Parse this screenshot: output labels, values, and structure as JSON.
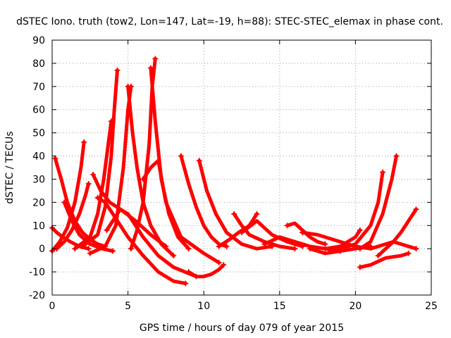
{
  "chart_data": {
    "type": "scatter",
    "title": "dSTEC Iono. truth (tow2, Lon=147, Lat=-19, h=88): STEC-STEC_elemax in phase cont.",
    "xlabel": "GPS time / hours of day 079 of year 2015",
    "ylabel": "dSTEC  / TECUs",
    "xlim": [
      0,
      25
    ],
    "ylim": [
      -20,
      90
    ],
    "grid": true,
    "marker": "plus",
    "series_color": "#ff0000",
    "x_ticks": [
      0,
      5,
      10,
      15,
      20,
      25
    ],
    "y_ticks": [
      -20,
      -10,
      0,
      10,
      20,
      30,
      40,
      50,
      60,
      70,
      80,
      90
    ],
    "x_tick_labels": [
      "0",
      "5",
      "10",
      "15",
      "20",
      "25"
    ],
    "y_tick_labels": [
      "-20",
      "-10",
      "0",
      "10",
      "20",
      "30",
      "40",
      "50",
      "60",
      "70",
      "80",
      "90"
    ],
    "series": [
      {
        "x": [
          0.0,
          0.3,
          0.7,
          1.2,
          1.8,
          2.4
        ],
        "y": [
          9,
          7,
          5,
          3,
          1,
          0
        ]
      },
      {
        "x": [
          0.2,
          0.6,
          1.0,
          1.5,
          2.0,
          2.5,
          3.0,
          3.5
        ],
        "y": [
          39,
          30,
          20,
          12,
          7,
          4,
          2,
          1
        ]
      },
      {
        "x": [
          0.0,
          0.5,
          1.0,
          1.5,
          1.9,
          2.1
        ],
        "y": [
          -1,
          3,
          9,
          20,
          35,
          46
        ]
      },
      {
        "x": [
          0.3,
          0.8,
          1.3,
          1.8,
          2.2,
          2.4
        ],
        "y": [
          0,
          3,
          8,
          15,
          23,
          28
        ]
      },
      {
        "x": [
          0.8,
          1.3,
          1.8,
          2.5,
          3.3,
          4.0
        ],
        "y": [
          20,
          12,
          6,
          2,
          0,
          -1
        ]
      },
      {
        "x": [
          2.7,
          3.2,
          3.8,
          4.5,
          5.5,
          6.5,
          7.5
        ],
        "y": [
          32,
          25,
          20,
          17,
          12,
          6,
          1
        ]
      },
      {
        "x": [
          1.5,
          2.5,
          3.0,
          3.4,
          3.7,
          3.9
        ],
        "y": [
          0,
          5,
          15,
          30,
          45,
          55
        ]
      },
      {
        "x": [
          2.0,
          3.0,
          3.5,
          3.9,
          4.1,
          4.3
        ],
        "y": [
          1,
          6,
          18,
          40,
          60,
          77
        ]
      },
      {
        "x": [
          3.0,
          3.5,
          4.0,
          5.0,
          6.0,
          7.0,
          8.0,
          8.8
        ],
        "y": [
          22,
          20,
          15,
          5,
          -3,
          -10,
          -14,
          -15
        ]
      },
      {
        "x": [
          3.6,
          4.0,
          4.5,
          5.0,
          6.0,
          7.0,
          8.0,
          9.5
        ],
        "y": [
          8,
          12,
          17,
          15,
          5,
          -3,
          -8,
          -12
        ]
      },
      {
        "x": [
          2.5,
          3.5,
          4.2,
          4.7,
          5.0,
          5.2
        ],
        "y": [
          -2,
          1,
          10,
          35,
          60,
          70
        ]
      },
      {
        "x": [
          5.0,
          5.3,
          5.6,
          6.0,
          6.5,
          7.2,
          8.0
        ],
        "y": [
          70,
          50,
          35,
          20,
          10,
          2,
          -3
        ]
      },
      {
        "x": [
          5.2,
          5.6,
          6.0,
          6.4,
          6.6,
          6.8
        ],
        "y": [
          0,
          8,
          20,
          45,
          70,
          82
        ]
      },
      {
        "x": [
          6.5,
          6.8,
          7.2,
          7.7,
          8.3,
          9.0
        ],
        "y": [
          78,
          55,
          30,
          15,
          5,
          0
        ]
      },
      {
        "x": [
          6.0,
          6.5,
          7.0,
          7.5,
          8.5,
          10.0,
          11.0
        ],
        "y": [
          30,
          35,
          38,
          20,
          5,
          -2,
          -6
        ]
      },
      {
        "x": [
          8.5,
          9.0,
          9.5,
          10.0,
          10.5,
          11.0,
          11.5
        ],
        "y": [
          40,
          28,
          18,
          10,
          5,
          2,
          1
        ]
      },
      {
        "x": [
          9.7,
          10.2,
          10.8,
          11.5,
          12.5,
          13.5,
          14.5
        ],
        "y": [
          38,
          25,
          15,
          7,
          2,
          0,
          1
        ]
      },
      {
        "x": [
          9.0,
          9.5,
          10.0,
          10.5,
          11.0,
          11.3
        ],
        "y": [
          -10,
          -12,
          -12,
          -11,
          -9,
          -7
        ]
      },
      {
        "x": [
          11.0,
          11.7,
          12.3,
          13.0,
          13.5
        ],
        "y": [
          1,
          4,
          7,
          10,
          15
        ]
      },
      {
        "x": [
          12.0,
          12.5,
          13.0,
          14.0,
          15.0,
          16.0
        ],
        "y": [
          15,
          10,
          6,
          3,
          1,
          0
        ]
      },
      {
        "x": [
          12.5,
          13.5,
          14.5,
          15.5,
          16.5
        ],
        "y": [
          7,
          12,
          6,
          3,
          1
        ]
      },
      {
        "x": [
          14.0,
          15.0,
          16.0,
          17.0,
          18.0,
          19.0
        ],
        "y": [
          2,
          5,
          3,
          1,
          0,
          -1
        ]
      },
      {
        "x": [
          15.5,
          16.0,
          16.5,
          17.0,
          17.5,
          18.0
        ],
        "y": [
          10,
          11,
          8,
          5,
          3,
          2
        ]
      },
      {
        "x": [
          16.5,
          17.5,
          18.5,
          19.5,
          20.0
        ],
        "y": [
          7,
          6,
          4,
          2,
          1
        ]
      },
      {
        "x": [
          17.0,
          18.0,
          19.0,
          20.0,
          21.0
        ],
        "y": [
          0,
          -2,
          -1,
          0,
          1
        ]
      },
      {
        "x": [
          18.0,
          19.0,
          19.5,
          20.0,
          20.3
        ],
        "y": [
          0,
          1,
          3,
          5,
          8
        ]
      },
      {
        "x": [
          19.0,
          20.0,
          21.0,
          21.5,
          21.8
        ],
        "y": [
          0,
          2,
          10,
          20,
          33
        ]
      },
      {
        "x": [
          20.3,
          21.0,
          21.8,
          22.4,
          22.7
        ],
        "y": [
          0,
          3,
          15,
          30,
          40
        ]
      },
      {
        "x": [
          20.0,
          21.0,
          22.0,
          22.5,
          23.0,
          24.0
        ],
        "y": [
          1,
          0,
          2,
          3,
          2,
          0
        ]
      },
      {
        "x": [
          20.3,
          21.0,
          22.0,
          23.0,
          23.5
        ],
        "y": [
          -8,
          -7,
          -4,
          -3,
          -2
        ]
      },
      {
        "x": [
          21.5,
          22.0,
          22.5,
          23.0,
          23.5,
          24.0
        ],
        "y": [
          -3,
          0,
          3,
          7,
          12,
          17
        ]
      }
    ]
  }
}
